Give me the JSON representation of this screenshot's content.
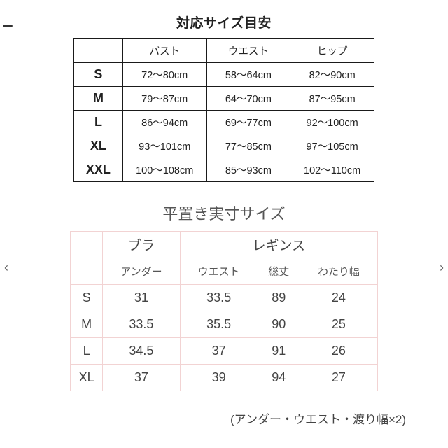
{
  "table1": {
    "title": "対応サイズ目安",
    "columns": [
      "バスト",
      "ウエスト",
      "ヒップ"
    ],
    "rows": [
      {
        "size": "S",
        "vals": [
          "72～80cm",
          "58～64cm",
          "82～90cm"
        ]
      },
      {
        "size": "M",
        "vals": [
          "79～87cm",
          "64～70cm",
          "87～95cm"
        ]
      },
      {
        "size": "L",
        "vals": [
          "86～94cm",
          "69～77cm",
          "92～100cm"
        ]
      },
      {
        "size": "XL",
        "vals": [
          "93～101cm",
          "77～85cm",
          "97～105cm"
        ]
      },
      {
        "size": "XXL",
        "vals": [
          "100～108cm",
          "85～93cm",
          "102～110cm"
        ]
      }
    ],
    "border_color": "#1a1a1a",
    "title_fontsize": 19,
    "cell_fontsize": 15
  },
  "table2": {
    "title": "平置き実寸サイズ",
    "group_headers": [
      "ブラ",
      "レギンス"
    ],
    "sub_headers": [
      "アンダー",
      "ウエスト",
      "総丈",
      "わたり幅"
    ],
    "rows": [
      {
        "size": "S",
        "vals": [
          "31",
          "33.5",
          "89",
          "24"
        ]
      },
      {
        "size": "M",
        "vals": [
          "33.5",
          "35.5",
          "90",
          "25"
        ]
      },
      {
        "size": "L",
        "vals": [
          "34.5",
          "37",
          "91",
          "26"
        ]
      },
      {
        "size": "XL",
        "vals": [
          "37",
          "39",
          "94",
          "27"
        ]
      }
    ],
    "border_color": "#f2d3d3",
    "title_fontsize": 22,
    "cell_fontsize": 18
  },
  "note": "(アンダー・ウエスト・渡り幅×2)",
  "background_color": "#ffffff",
  "text_color": "#222222"
}
